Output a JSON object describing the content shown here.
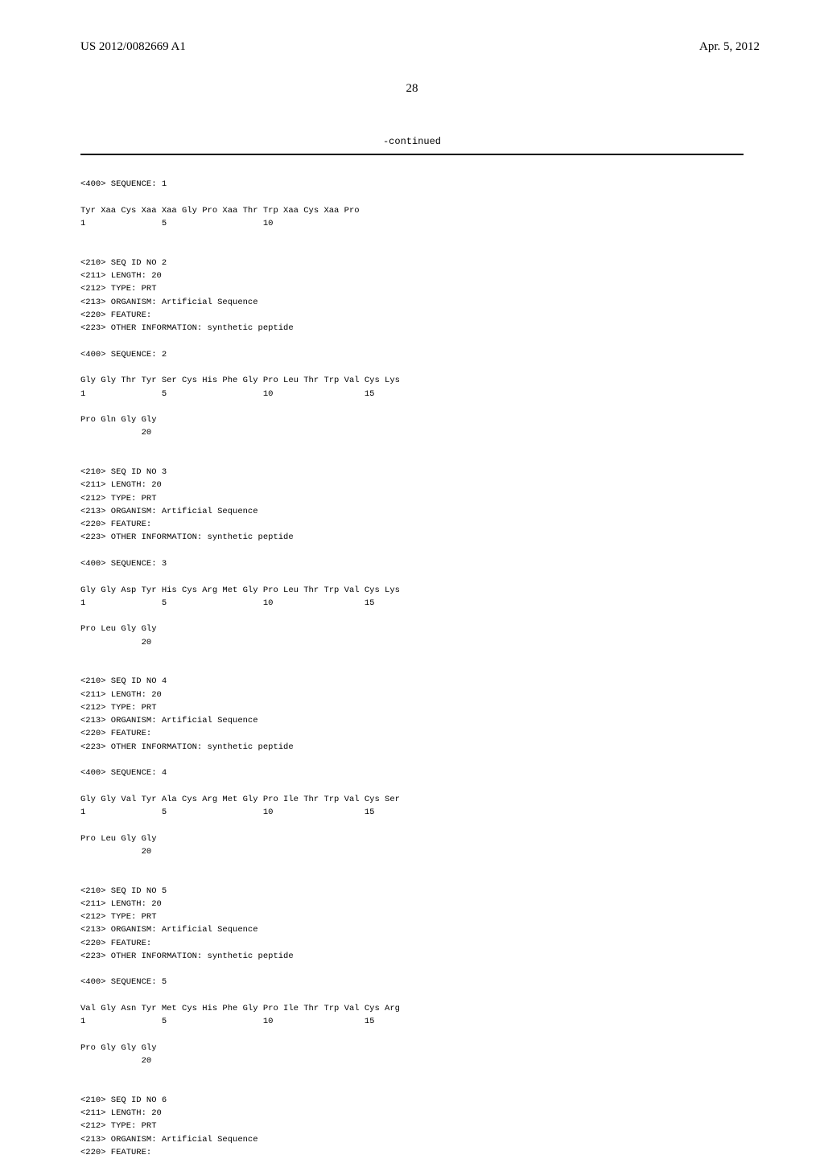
{
  "header": {
    "publication": "US 2012/0082669 A1",
    "date": "Apr. 5, 2012"
  },
  "page_number": "28",
  "continued_label": "-continued",
  "sequences": {
    "seq1": {
      "tag": "<400> SEQUENCE: 1",
      "line1": "Tyr Xaa Cys Xaa Xaa Gly Pro Xaa Thr Trp Xaa Cys Xaa Pro",
      "nums1": "1               5                   10"
    },
    "seq2": {
      "header": "<210> SEQ ID NO 2\n<211> LENGTH: 20\n<212> TYPE: PRT\n<213> ORGANISM: Artificial Sequence\n<220> FEATURE:\n<223> OTHER INFORMATION: synthetic peptide",
      "tag": "<400> SEQUENCE: 2",
      "line1": "Gly Gly Thr Tyr Ser Cys His Phe Gly Pro Leu Thr Trp Val Cys Lys",
      "nums1": "1               5                   10                  15",
      "line2": "Pro Gln Gly Gly",
      "nums2": "            20"
    },
    "seq3": {
      "header": "<210> SEQ ID NO 3\n<211> LENGTH: 20\n<212> TYPE: PRT\n<213> ORGANISM: Artificial Sequence\n<220> FEATURE:\n<223> OTHER INFORMATION: synthetic peptide",
      "tag": "<400> SEQUENCE: 3",
      "line1": "Gly Gly Asp Tyr His Cys Arg Met Gly Pro Leu Thr Trp Val Cys Lys",
      "nums1": "1               5                   10                  15",
      "line2": "Pro Leu Gly Gly",
      "nums2": "            20"
    },
    "seq4": {
      "header": "<210> SEQ ID NO 4\n<211> LENGTH: 20\n<212> TYPE: PRT\n<213> ORGANISM: Artificial Sequence\n<220> FEATURE:\n<223> OTHER INFORMATION: synthetic peptide",
      "tag": "<400> SEQUENCE: 4",
      "line1": "Gly Gly Val Tyr Ala Cys Arg Met Gly Pro Ile Thr Trp Val Cys Ser",
      "nums1": "1               5                   10                  15",
      "line2": "Pro Leu Gly Gly",
      "nums2": "            20"
    },
    "seq5": {
      "header": "<210> SEQ ID NO 5\n<211> LENGTH: 20\n<212> TYPE: PRT\n<213> ORGANISM: Artificial Sequence\n<220> FEATURE:\n<223> OTHER INFORMATION: synthetic peptide",
      "tag": "<400> SEQUENCE: 5",
      "line1": "Val Gly Asn Tyr Met Cys His Phe Gly Pro Ile Thr Trp Val Cys Arg",
      "nums1": "1               5                   10                  15",
      "line2": "Pro Gly Gly Gly",
      "nums2": "            20"
    },
    "seq6": {
      "header": "<210> SEQ ID NO 6\n<211> LENGTH: 20\n<212> TYPE: PRT\n<213> ORGANISM: Artificial Sequence\n<220> FEATURE:"
    }
  }
}
